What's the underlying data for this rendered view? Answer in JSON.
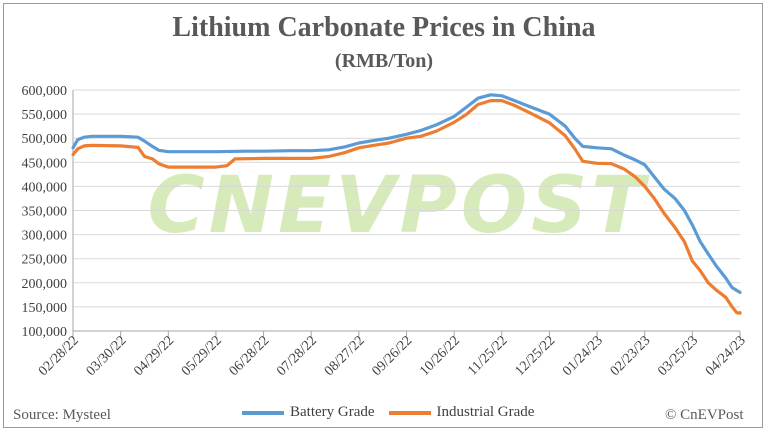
{
  "chart_data": {
    "type": "line",
    "title": "Lithium Carbonate Prices in China",
    "subtitle": "(RMB/Ton)",
    "source": "Source: Mysteel",
    "copyright": "© CnEVPost",
    "watermark": "CNEVPOST",
    "ylim": [
      100000,
      600000
    ],
    "yticks": [
      "100,000",
      "150,000",
      "200,000",
      "250,000",
      "300,000",
      "350,000",
      "400,000",
      "450,000",
      "500,000",
      "550,000",
      "600,000"
    ],
    "xticks": [
      "02/28/22",
      "03/30/22",
      "04/29/22",
      "05/29/22",
      "06/28/22",
      "07/28/22",
      "08/27/22",
      "09/26/22",
      "10/26/22",
      "11/25/22",
      "12/25/22",
      "01/24/23",
      "02/23/23",
      "03/25/23",
      "04/24/23"
    ],
    "grid": true,
    "legend_position": "bottom",
    "x_range": [
      "2022-02-28",
      "2023-04-24"
    ],
    "series": [
      {
        "name": "Battery Grade",
        "color": "#5b9bd5",
        "points": [
          [
            "2022-02-28",
            480000
          ],
          [
            "2022-03-03",
            497000
          ],
          [
            "2022-03-07",
            502000
          ],
          [
            "2022-03-12",
            504000
          ],
          [
            "2022-03-30",
            504000
          ],
          [
            "2022-04-10",
            502000
          ],
          [
            "2022-04-14",
            494000
          ],
          [
            "2022-04-19",
            483000
          ],
          [
            "2022-04-23",
            475000
          ],
          [
            "2022-04-29",
            472000
          ],
          [
            "2022-05-29",
            472000
          ],
          [
            "2022-06-17",
            473000
          ],
          [
            "2022-06-28",
            473000
          ],
          [
            "2022-07-15",
            474000
          ],
          [
            "2022-07-28",
            474000
          ],
          [
            "2022-08-08",
            476000
          ],
          [
            "2022-08-18",
            482000
          ],
          [
            "2022-08-27",
            490000
          ],
          [
            "2022-09-05",
            495000
          ],
          [
            "2022-09-15",
            500000
          ],
          [
            "2022-09-26",
            508000
          ],
          [
            "2022-10-05",
            516000
          ],
          [
            "2022-10-15",
            528000
          ],
          [
            "2022-10-26",
            545000
          ],
          [
            "2022-11-03",
            565000
          ],
          [
            "2022-11-10",
            583000
          ],
          [
            "2022-11-18",
            590000
          ],
          [
            "2022-11-25",
            588000
          ],
          [
            "2022-12-03",
            578000
          ],
          [
            "2022-12-13",
            565000
          ],
          [
            "2022-12-25",
            550000
          ],
          [
            "2023-01-04",
            525000
          ],
          [
            "2023-01-10",
            500000
          ],
          [
            "2023-01-15",
            483000
          ],
          [
            "2023-01-24",
            480000
          ],
          [
            "2023-02-02",
            478000
          ],
          [
            "2023-02-10",
            465000
          ],
          [
            "2023-02-17",
            455000
          ],
          [
            "2023-02-23",
            445000
          ],
          [
            "2023-03-01",
            420000
          ],
          [
            "2023-03-07",
            395000
          ],
          [
            "2023-03-14",
            375000
          ],
          [
            "2023-03-20",
            350000
          ],
          [
            "2023-03-25",
            320000
          ],
          [
            "2023-03-30",
            285000
          ],
          [
            "2023-04-04",
            260000
          ],
          [
            "2023-04-09",
            235000
          ],
          [
            "2023-04-15",
            210000
          ],
          [
            "2023-04-19",
            190000
          ],
          [
            "2023-04-24",
            180000
          ],
          [
            "2023-04-26",
            180000
          ]
        ]
      },
      {
        "name": "Industrial Grade",
        "color": "#ed7d31",
        "points": [
          [
            "2022-02-28",
            466000
          ],
          [
            "2022-03-03",
            478000
          ],
          [
            "2022-03-07",
            484000
          ],
          [
            "2022-03-12",
            485000
          ],
          [
            "2022-03-30",
            484000
          ],
          [
            "2022-04-10",
            481000
          ],
          [
            "2022-04-14",
            462000
          ],
          [
            "2022-04-19",
            457000
          ],
          [
            "2022-04-23",
            447000
          ],
          [
            "2022-04-29",
            440000
          ],
          [
            "2022-05-29",
            440000
          ],
          [
            "2022-06-05",
            443000
          ],
          [
            "2022-06-10",
            457000
          ],
          [
            "2022-06-28",
            458000
          ],
          [
            "2022-07-15",
            458000
          ],
          [
            "2022-07-28",
            458000
          ],
          [
            "2022-08-08",
            462000
          ],
          [
            "2022-08-18",
            470000
          ],
          [
            "2022-08-27",
            480000
          ],
          [
            "2022-09-05",
            485000
          ],
          [
            "2022-09-15",
            490000
          ],
          [
            "2022-09-26",
            500000
          ],
          [
            "2022-10-05",
            504000
          ],
          [
            "2022-10-15",
            515000
          ],
          [
            "2022-10-26",
            533000
          ],
          [
            "2022-11-03",
            550000
          ],
          [
            "2022-11-10",
            570000
          ],
          [
            "2022-11-18",
            578000
          ],
          [
            "2022-11-25",
            578000
          ],
          [
            "2022-12-03",
            568000
          ],
          [
            "2022-12-13",
            552000
          ],
          [
            "2022-12-25",
            532000
          ],
          [
            "2023-01-04",
            505000
          ],
          [
            "2023-01-10",
            478000
          ],
          [
            "2023-01-15",
            452000
          ],
          [
            "2023-01-24",
            448000
          ],
          [
            "2023-02-02",
            447000
          ],
          [
            "2023-02-10",
            436000
          ],
          [
            "2023-02-17",
            420000
          ],
          [
            "2023-02-23",
            400000
          ],
          [
            "2023-03-01",
            375000
          ],
          [
            "2023-03-07",
            345000
          ],
          [
            "2023-03-14",
            315000
          ],
          [
            "2023-03-20",
            285000
          ],
          [
            "2023-03-25",
            245000
          ],
          [
            "2023-03-30",
            225000
          ],
          [
            "2023-04-04",
            200000
          ],
          [
            "2023-04-09",
            185000
          ],
          [
            "2023-04-15",
            170000
          ],
          [
            "2023-04-19",
            150000
          ],
          [
            "2023-04-22",
            138000
          ],
          [
            "2023-04-24",
            137000
          ],
          [
            "2023-04-26",
            138000
          ]
        ]
      }
    ]
  }
}
